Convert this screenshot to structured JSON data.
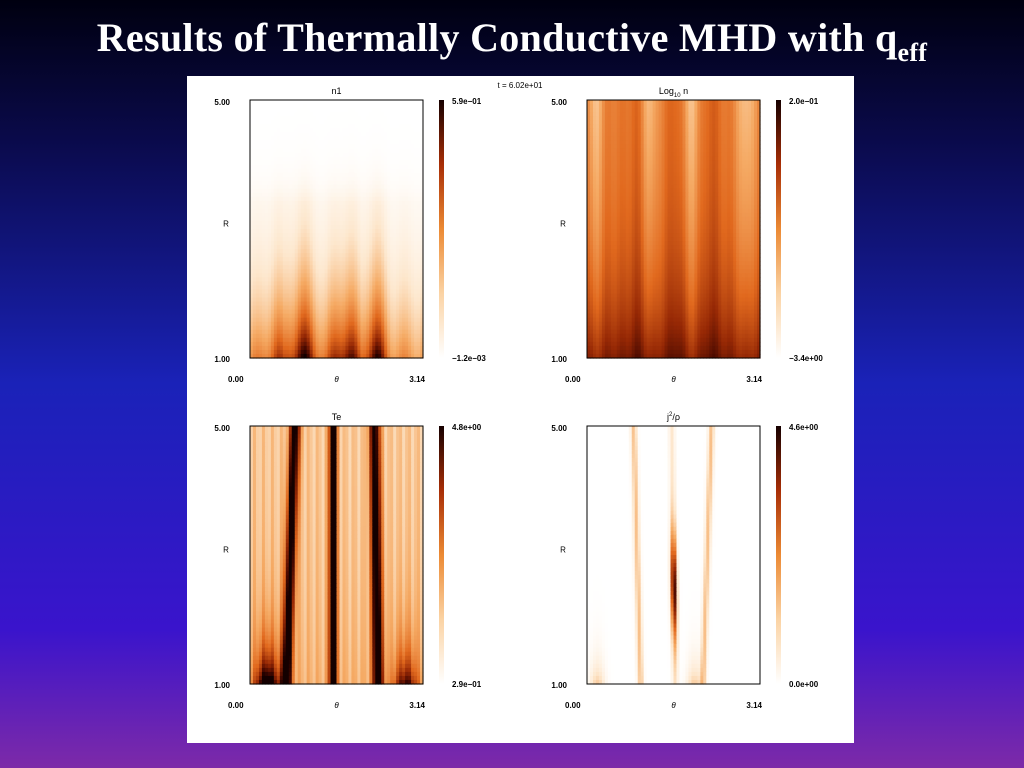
{
  "slide": {
    "title_main": "Results of Thermally Conductive MHD with q",
    "title_sub": "eff"
  },
  "figure": {
    "time_label": "t = 6.02e+01",
    "panels": [
      {
        "id": "n1",
        "title": "n1",
        "y_max": "5.00",
        "y_min": "1.00",
        "y_label": "R",
        "x_min": "0.00",
        "x_max": "3.14",
        "x_label": "θ",
        "cb_max": "5.9e−01",
        "cb_min": "−1.2e−03",
        "field": "n1"
      },
      {
        "id": "log10n",
        "title_base": "Log",
        "title_sub": "10",
        "title_tail": " n",
        "y_max": "5.00",
        "y_min": "1.00",
        "y_label": "R",
        "x_min": "0.00",
        "x_max": "3.14",
        "x_label": "θ",
        "cb_max": "2.0e−01",
        "cb_min": "−3.4e+00",
        "field": "log10n"
      },
      {
        "id": "te",
        "title": "Te",
        "y_max": "5.00",
        "y_min": "1.00",
        "y_label": "R",
        "x_min": "0.00",
        "x_max": "3.14",
        "x_label": "θ",
        "cb_max": "4.8e+00",
        "cb_min": "2.9e−01",
        "field": "te"
      },
      {
        "id": "j2rho",
        "title_base": "j",
        "title_sup": "2",
        "title_tail": "/ρ",
        "y_max": "5.00",
        "y_min": "1.00",
        "y_label": "R",
        "x_min": "0.00",
        "x_max": "3.14",
        "x_label": "θ",
        "cb_max": "4.6e+00",
        "cb_min": "0.0e+00",
        "field": "j2rho"
      }
    ]
  },
  "colors": {
    "map_low": "#ffffff",
    "map_mid": "#e06a1a",
    "map_high": "#1a0000",
    "slide_title": "#ffffff"
  }
}
